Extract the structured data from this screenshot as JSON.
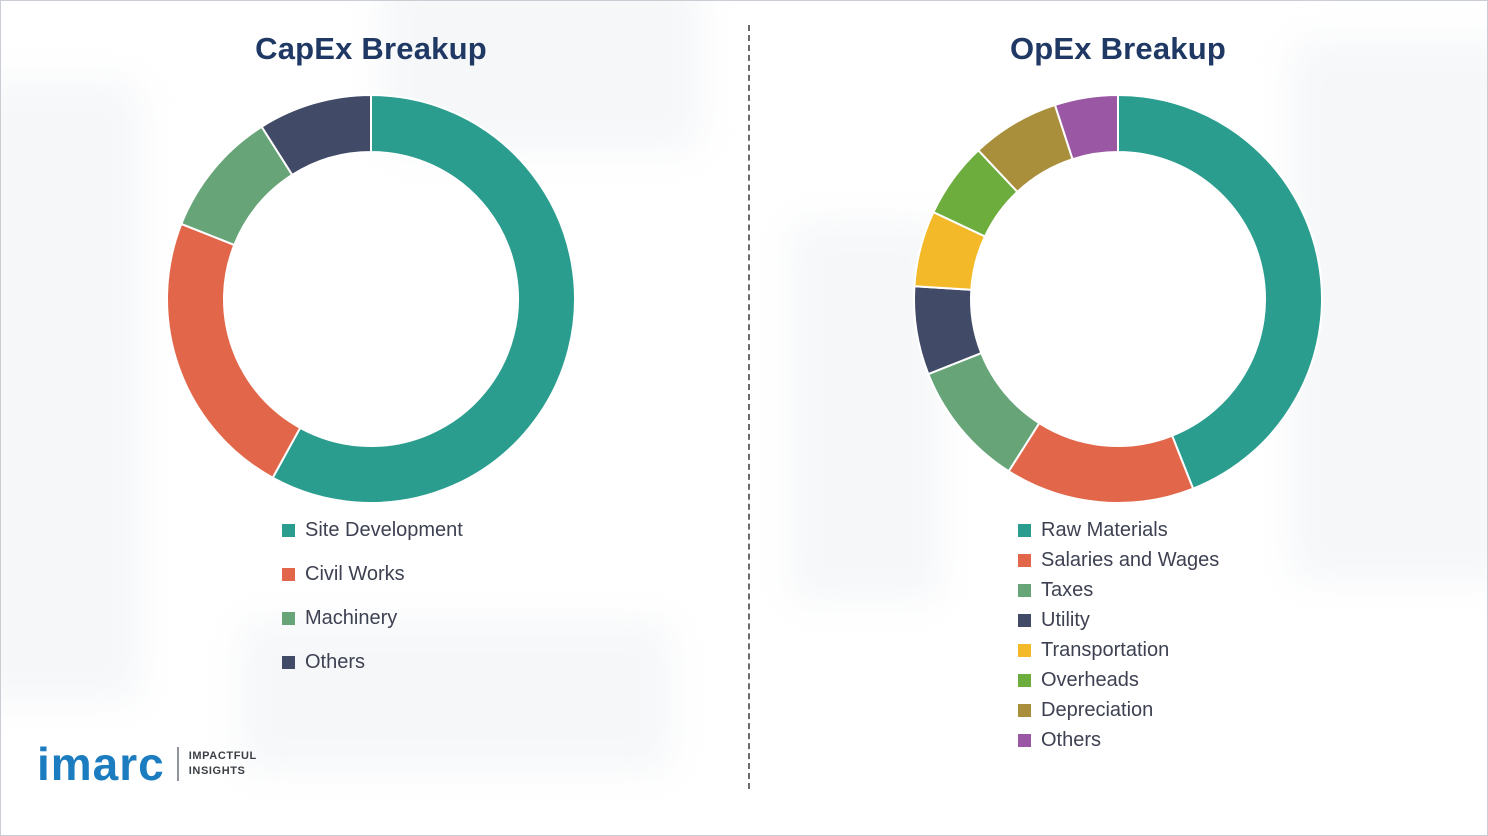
{
  "chart_data": [
    {
      "type": "pie",
      "style": "donut",
      "title": "CapEx Breakup",
      "labels": [
        "Site Development",
        "Civil Works",
        "Machinery",
        "Others"
      ],
      "values": [
        58,
        23,
        10,
        9
      ],
      "values_estimated_percent": true,
      "colors": [
        "#2a9d8f",
        "#e2674a",
        "#67a579",
        "#414a66"
      ],
      "start_angle_deg": 0,
      "direction": "clockwise",
      "inner_radius_ratio": 0.72,
      "legend_position": "below-left",
      "data_labels_shown": false
    },
    {
      "type": "pie",
      "style": "donut",
      "title": "OpEx Breakup",
      "labels": [
        "Raw Materials",
        "Salaries and Wages",
        "Taxes",
        "Utility",
        "Transportation",
        "Overheads",
        "Depreciation",
        "Others"
      ],
      "values": [
        44,
        15,
        10,
        7,
        6,
        6,
        7,
        5
      ],
      "values_estimated_percent": true,
      "colors": [
        "#2a9d8f",
        "#e2674a",
        "#67a579",
        "#414a66",
        "#f3b929",
        "#6cad3d",
        "#a98e3b",
        "#9a57a3"
      ],
      "start_angle_deg": 0,
      "direction": "clockwise",
      "inner_radius_ratio": 0.72,
      "legend_position": "below-left",
      "data_labels_shown": false
    }
  ],
  "logo": {
    "brand": "imarc",
    "tagline": [
      "IMPACTFUL",
      "INSIGHTS"
    ]
  },
  "theme": {
    "title_color": "#1f3864",
    "legend_text_color": "#3d4152",
    "divider_color": "#6a6a6a",
    "logo_blue": "#1b7cc0",
    "background": "#ffffff"
  }
}
